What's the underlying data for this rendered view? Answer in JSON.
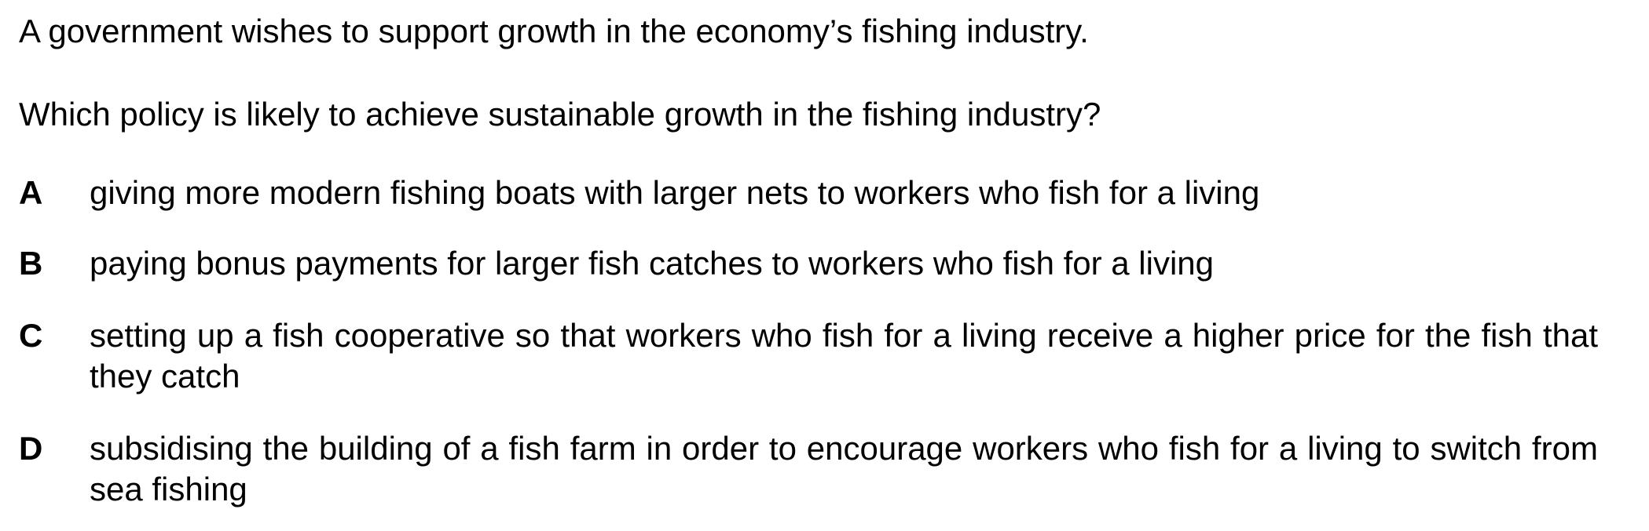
{
  "question": {
    "stem_line_1": "A government wishes to support growth in the economy’s fishing industry.",
    "stem_line_2": "Which policy is likely to achieve sustainable growth in the fishing industry?",
    "options": [
      {
        "letter": "A",
        "text": "giving more modern fishing boats with larger nets to workers who fish for a living"
      },
      {
        "letter": "B",
        "text": "paying bonus payments for larger fish catches to workers who fish for a living"
      },
      {
        "letter": "C",
        "text": "setting up a fish cooperative so that workers who fish for a living receive a higher price for the fish that they catch"
      },
      {
        "letter": "D",
        "text": "subsidising the building of a fish farm in order to encourage workers who fish for a living to switch from sea fishing"
      }
    ]
  }
}
